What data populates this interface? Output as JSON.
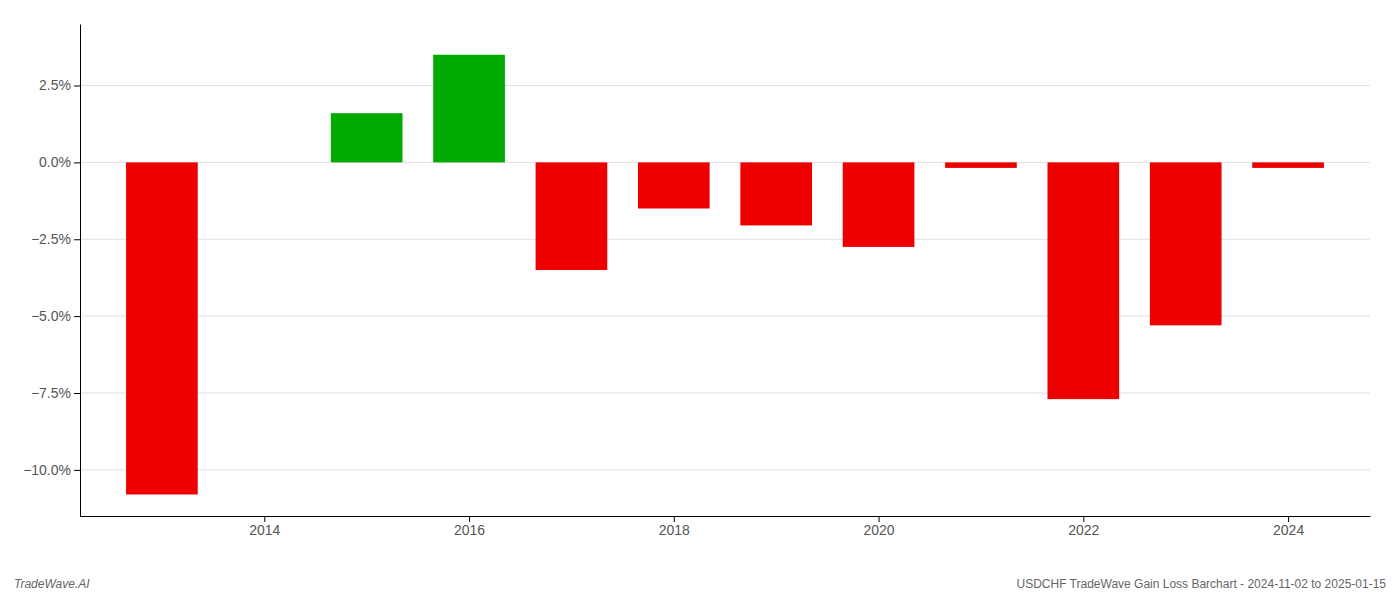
{
  "chart_data": {
    "type": "bar",
    "x": [
      2013,
      2014,
      2015,
      2016,
      2017,
      2018,
      2019,
      2020,
      2021,
      2022,
      2023,
      2024
    ],
    "values": [
      -10.8,
      0.0,
      1.6,
      3.5,
      -3.5,
      -1.5,
      -2.05,
      -2.75,
      -0.18,
      -7.7,
      -5.3,
      -0.18
    ],
    "colors": [
      "#ee0000",
      "#00aa00",
      "#00aa00",
      "#00aa00",
      "#ee0000",
      "#ee0000",
      "#ee0000",
      "#ee0000",
      "#ee0000",
      "#ee0000",
      "#ee0000",
      "#ee0000"
    ],
    "xlim": [
      2012.2,
      2024.8
    ],
    "xticks": [
      2014,
      2016,
      2018,
      2020,
      2022,
      2024
    ],
    "ylim": [
      -11.5,
      4.5
    ],
    "yticks": [
      {
        "value": -10.0,
        "label": "−10.0%"
      },
      {
        "value": -7.5,
        "label": "−7.5%"
      },
      {
        "value": -5.0,
        "label": "−5.0%"
      },
      {
        "value": -2.5,
        "label": "−2.5%"
      },
      {
        "value": 0.0,
        "label": "0.0%"
      },
      {
        "value": 2.5,
        "label": "2.5%"
      }
    ],
    "grid": true,
    "annotations": [
      "TradeWave.AI",
      "USDCHF TradeWave Gain Loss Barchart - 2024-11-02 to 2025-01-15"
    ]
  }
}
